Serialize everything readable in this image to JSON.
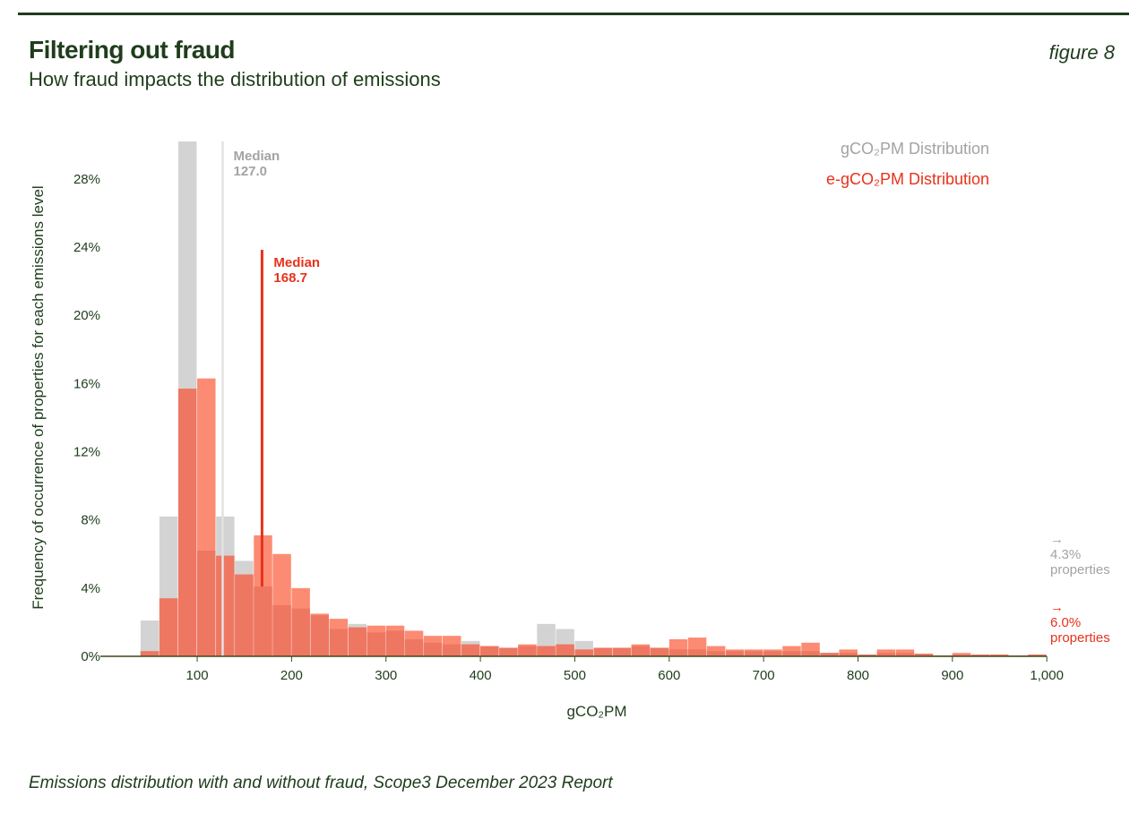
{
  "header": {
    "title": "Filtering out fraud",
    "subtitle": "How fraud impacts the distribution of emissions",
    "figure_label": "figure 8"
  },
  "caption": "Emissions distribution with and without fraud, Scope3 December 2023 Report",
  "chart_data": {
    "type": "bar",
    "subtype": "overlaid histogram",
    "xlabel": "gCO₂PM",
    "ylabel": "Frequency of occurrence of properties for each emissions level",
    "xlim": [
      0,
      1000
    ],
    "ylim": [
      0,
      30
    ],
    "bin_width": 20,
    "x_ticks": [
      "100",
      "200",
      "300",
      "400",
      "500",
      "600",
      "700",
      "800",
      "900",
      "1,000"
    ],
    "y_ticks": [
      "0%",
      "4%",
      "8%",
      "12%",
      "16%",
      "20%",
      "24%",
      "28%"
    ],
    "bin_starts": [
      40,
      60,
      80,
      100,
      120,
      140,
      160,
      180,
      200,
      220,
      240,
      260,
      280,
      300,
      320,
      340,
      360,
      380,
      400,
      420,
      440,
      460,
      480,
      500,
      520,
      540,
      560,
      580,
      600,
      620,
      640,
      660,
      680,
      700,
      720,
      740,
      760,
      780,
      800,
      820,
      840,
      860,
      880,
      900,
      920,
      940,
      960,
      980
    ],
    "series": [
      {
        "name": "gCO₂PM Distribution",
        "color": "#d3d3d3",
        "values": [
          2.1,
          8.2,
          31,
          6.2,
          8.2,
          5.6,
          4.1,
          3.0,
          2.8,
          2.4,
          1.6,
          1.9,
          1.4,
          1.5,
          1.0,
          0.8,
          0.7,
          0.9,
          0.6,
          0.5,
          0.6,
          1.9,
          1.6,
          0.9,
          0.5,
          0.5,
          0.6,
          0.5,
          0.4,
          0.4,
          0.3,
          0.3,
          0.3,
          0.3,
          0.3,
          0.3,
          0.2,
          0.2,
          0.1,
          0.2,
          0.2,
          0.15,
          0.05,
          0.1,
          0.1,
          0.1,
          0.05,
          0.1
        ]
      },
      {
        "name": "e-gCO₂PM Distribution",
        "color": "#fc8b73",
        "values": [
          0.3,
          3.4,
          15.7,
          16.3,
          5.9,
          4.8,
          7.1,
          6.0,
          4.0,
          2.5,
          2.2,
          1.7,
          1.8,
          1.8,
          1.5,
          1.2,
          1.2,
          0.7,
          0.6,
          0.5,
          0.7,
          0.6,
          0.7,
          0.4,
          0.5,
          0.5,
          0.7,
          0.5,
          1.0,
          1.1,
          0.6,
          0.4,
          0.4,
          0.4,
          0.6,
          0.8,
          0.2,
          0.4,
          0.1,
          0.4,
          0.4,
          0.15,
          0.05,
          0.2,
          0.1,
          0.1,
          0.05,
          0.1
        ]
      }
    ],
    "overlap_color": "#ee7762",
    "medians": [
      {
        "label": "Median",
        "value_text": "127.0",
        "value": 127.0,
        "color": "#e2e2e2",
        "text_color": "#a3a3a3"
      },
      {
        "label": "Median",
        "value_text": "168.7",
        "value": 168.7,
        "color": "#e8321c",
        "text_color": "#e8321c"
      }
    ],
    "legend": {
      "placement": "top-right",
      "items": [
        "gCO₂PM Distribution",
        "e-gCO₂PM Distribution"
      ]
    },
    "annotations": [
      {
        "arrow": "→",
        "value": "4.3%",
        "text": "properties",
        "color": "#a3a3a3"
      },
      {
        "arrow": "→",
        "value": "6.0%",
        "text": "properties",
        "color": "#e8321c"
      }
    ],
    "grid": false
  }
}
